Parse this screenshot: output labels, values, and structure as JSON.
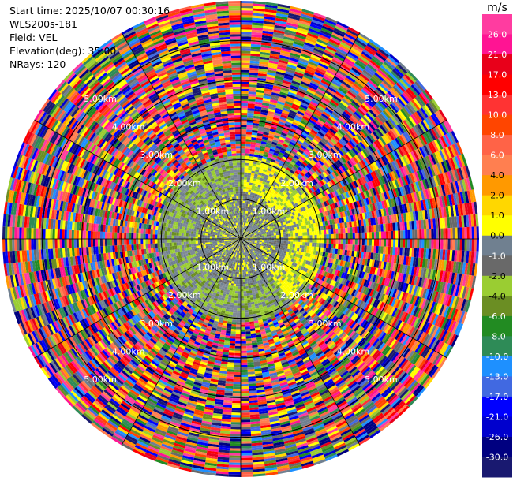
{
  "header": {
    "start_time": "Start time: 2025/10/07 00:30:16",
    "instrument": "WLS200s-181",
    "field": "Field: VEL",
    "elevation": "Elevation(deg): 35.00",
    "nrays": "NRays: 120"
  },
  "chart_data": {
    "type": "heatmap",
    "projection": "polar-ppi",
    "field": "VEL",
    "units": "m/s",
    "nrays": 120,
    "max_range_km": 6.0,
    "range_rings_km": [
      1.0,
      2.0,
      3.0,
      4.0,
      5.0
    ],
    "range_ring_labels": [
      "1.00km",
      "2.00km",
      "3.00km",
      "4.00km",
      "5.00km"
    ],
    "inner_valid_range_km": 2.1,
    "colorbar": {
      "unit_label": "m/s",
      "ticks": [
        "26.0",
        "21.0",
        "17.0",
        "13.0",
        "10.0",
        "8.0",
        "6.0",
        "4.0",
        "2.0",
        "1.0",
        "0.0",
        "-1.0",
        "-2.0",
        "-4.0",
        "-6.0",
        "-8.0",
        "-10.0",
        "-13.0",
        "-17.0",
        "-21.0",
        "-26.0",
        "-30.0"
      ],
      "colors": [
        "#ff3ca0",
        "#ff1493",
        "#e8001a",
        "#ff0000",
        "#ff3333",
        "#ff4500",
        "#ff6347",
        "#ff7f50",
        "#ff9900",
        "#ffd700",
        "#ffff00",
        "#708090",
        "#696969",
        "#9acd32",
        "#6b8e23",
        "#228b22",
        "#2e8b57",
        "#1e90ff",
        "#4169e1",
        "#0000ff",
        "#0000cd",
        "#000080",
        "#191970"
      ]
    }
  }
}
